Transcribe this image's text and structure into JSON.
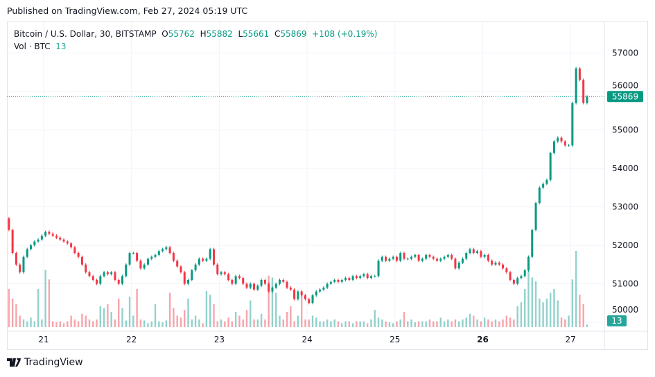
{
  "header": {
    "published": "Published on TradingView.com, Feb 27, 2024 05:19 UTC"
  },
  "legend": {
    "symbol": "Bitcoin / U.S. Dollar, 30, BITSTAMP",
    "open_label": "O",
    "open": "55762",
    "high_label": "H",
    "high": "55882",
    "low_label": "L",
    "low": "55661",
    "close_label": "C",
    "close": "55869",
    "change": "+108 (+0.19%)",
    "vol_label": "Vol · BTC",
    "vol": "13"
  },
  "footer": {
    "brand": "TradingView"
  },
  "colors": {
    "up": "#089981",
    "down": "#f23645",
    "vol_up": "#26a69a",
    "price_label": "#089981"
  },
  "chart_data": {
    "type": "candlestick",
    "interval": "30",
    "price_ticks": [
      50000,
      51000,
      52000,
      53000,
      54000,
      55000,
      56000,
      57000
    ],
    "ylim": [
      49850,
      57300
    ],
    "time_ticks": [
      {
        "label": "21",
        "bold": false
      },
      {
        "label": "22",
        "bold": false
      },
      {
        "label": "23",
        "bold": false
      },
      {
        "label": "24",
        "bold": false
      },
      {
        "label": "25",
        "bold": false
      },
      {
        "label": "26",
        "bold": true
      },
      {
        "label": "27",
        "bold": false
      }
    ],
    "last_price": "55869",
    "last_volume": "13",
    "start_open": 52700,
    "closes": [
      52400,
      51800,
      51500,
      51300,
      51700,
      51900,
      52000,
      52100,
      52150,
      52250,
      52350,
      52300,
      52250,
      52200,
      52150,
      52100,
      52050,
      51950,
      51800,
      51700,
      51500,
      51300,
      51200,
      51100,
      51000,
      51200,
      51300,
      51250,
      51300,
      51100,
      51000,
      51200,
      51500,
      51800,
      51800,
      51600,
      51400,
      51500,
      51650,
      51700,
      51750,
      51850,
      51900,
      51950,
      51800,
      51600,
      51450,
      51300,
      51000,
      51100,
      51350,
      51500,
      51650,
      51600,
      51650,
      51900,
      51500,
      51250,
      51300,
      51250,
      51100,
      51000,
      51200,
      51150,
      51000,
      50900,
      51000,
      50850,
      50950,
      51100,
      51000,
      50800,
      50900,
      51000,
      51100,
      51050,
      50900,
      50850,
      50600,
      50800,
      50700,
      50600,
      50500,
      50700,
      50800,
      50850,
      50900,
      51000,
      51050,
      51100,
      51050,
      51100,
      51150,
      51100,
      51200,
      51150,
      51200,
      51250,
      51150,
      51200,
      51200,
      51600,
      51700,
      51600,
      51650,
      51700,
      51600,
      51800,
      51650,
      51650,
      51700,
      51750,
      51600,
      51650,
      51750,
      51700,
      51650,
      51600,
      51650,
      51700,
      51750,
      51650,
      51400,
      51550,
      51650,
      51800,
      51900,
      51800,
      51850,
      51700,
      51750,
      51600,
      51500,
      51550,
      51500,
      51400,
      51300,
      51100,
      51000,
      51150,
      51200,
      51350,
      51700,
      52400,
      53100,
      53500,
      53600,
      53700,
      54400,
      54700,
      54800,
      54700,
      54600,
      54600,
      55700,
      56600,
      56300,
      55700,
      55869
    ],
    "volumes": [
      200,
      150,
      120,
      60,
      40,
      30,
      50,
      30,
      200,
      40,
      300,
      250,
      30,
      25,
      30,
      20,
      30,
      60,
      40,
      30,
      70,
      60,
      40,
      30,
      40,
      110,
      100,
      120,
      80,
      40,
      150,
      100,
      35,
      160,
      60,
      200,
      40,
      35,
      20,
      30,
      120,
      30,
      25,
      35,
      180,
      100,
      60,
      50,
      90,
      150,
      40,
      60,
      40,
      20,
      190,
      170,
      120,
      30,
      40,
      30,
      50,
      30,
      80,
      60,
      40,
      90,
      140,
      40,
      40,
      70,
      40,
      270,
      260,
      180,
      60,
      40,
      80,
      110,
      30,
      60,
      190,
      40,
      40,
      60,
      50,
      30,
      30,
      40,
      30,
      40,
      30,
      20,
      30,
      30,
      20,
      30,
      30,
      30,
      20,
      40,
      90,
      50,
      40,
      30,
      25,
      20,
      30,
      40,
      80,
      30,
      40,
      25,
      30,
      30,
      30,
      40,
      30,
      30,
      50,
      30,
      40,
      30,
      40,
      30,
      40,
      50,
      70,
      60,
      40,
      30,
      50,
      40,
      30,
      40,
      30,
      40,
      60,
      50,
      40,
      110,
      130,
      200,
      300,
      260,
      240,
      150,
      130,
      150,
      180,
      200,
      140,
      50,
      40,
      60,
      250,
      400,
      170,
      120,
      13
    ]
  }
}
